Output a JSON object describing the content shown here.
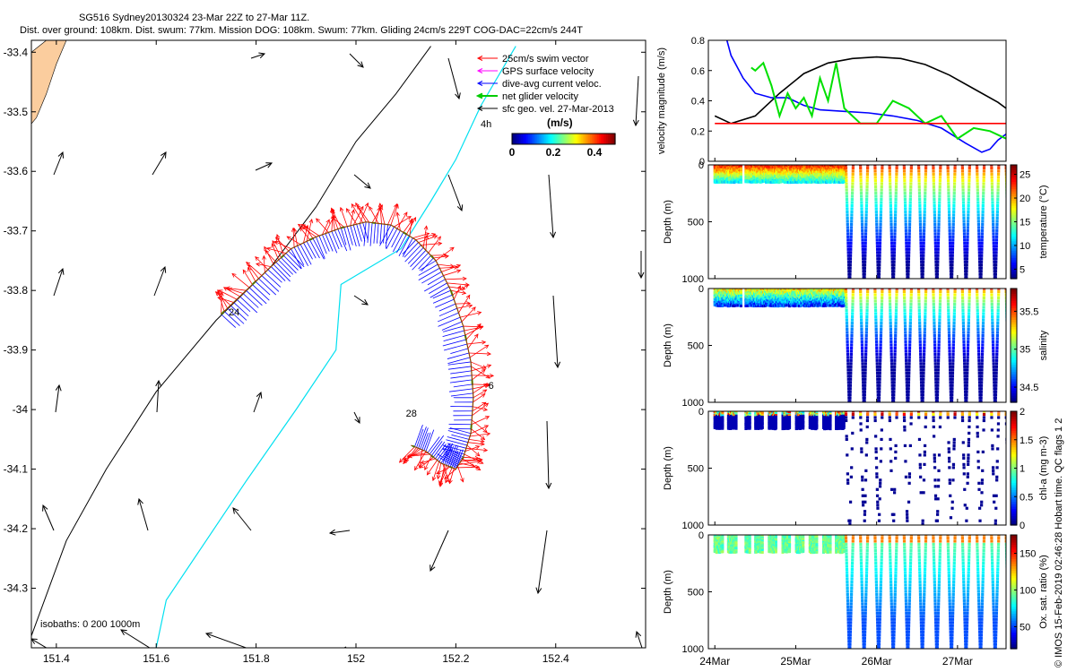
{
  "title": {
    "line1": "SG516 Sydney20130324 23-Mar 22Z to 27-Mar 11Z.",
    "line2": "Dist. over ground: 108km. Dist. swum: 77km. Mission DOG: 108km. Swum: 77km. Gliding 24cm/s 229T COG-DAC=22cm/s 244T"
  },
  "copyright": "© IMOS 15-Feb-2019 02:46:28 Hobart time. QC flags 1  2",
  "colors": {
    "land": "#fbcd9e",
    "swim": "#ff0000",
    "gps": "#ff00ff",
    "dac": "#0000ff",
    "net": "#00cc00",
    "sfc": "#000000",
    "isobath": "#00e0f0",
    "isobath_shelf": "#000000"
  },
  "chart_data": [
    {
      "type": "scatter",
      "name": "track-map",
      "xlim": [
        151.35,
        152.58
      ],
      "ylim": [
        -34.4,
        -33.38
      ],
      "xticks": [
        151.4,
        151.6,
        151.8,
        152,
        152.2,
        152.4
      ],
      "xtick_labels": [
        "151.4",
        "151.6",
        "151.8",
        "152",
        "152.2",
        "152.4"
      ],
      "yticks": [
        -33.4,
        -33.5,
        -33.6,
        -33.7,
        -33.8,
        -33.9,
        -34,
        -34.1,
        -34.2,
        -34.3
      ],
      "ytick_labels": [
        "-33.4",
        "-33.5",
        "-33.6",
        "-33.7",
        "-33.8",
        "-33.9",
        "-34",
        "-34.1",
        "-34.2",
        "-34.3"
      ],
      "legend": {
        "position": "top-right",
        "items": [
          "25cm/s swim vector",
          "GPS surface velocity",
          "dive-avg current veloc.",
          "net glider velocity",
          "sfc geo. vel. 27-Mar-2013"
        ],
        "time_label": "4h"
      },
      "colorbar": {
        "label": "(m/s)",
        "ticks": [
          0,
          0.2,
          0.4
        ],
        "tick_labels": [
          "0",
          "0.2",
          "0.4"
        ],
        "range": [
          0,
          0.5
        ]
      },
      "isobaths_label": "isobaths: 0   200  1000m",
      "day_labels": [
        {
          "text": "24",
          "lon": 151.745,
          "lat": -33.842
        },
        {
          "text": "28",
          "lon": 152.1,
          "lat": -34.012
        },
        {
          "text": "6",
          "lon": 152.265,
          "lat": -33.965
        }
      ],
      "track": [
        [
          151.73,
          -33.84
        ],
        [
          151.78,
          -33.8
        ],
        [
          151.83,
          -33.76
        ],
        [
          151.87,
          -33.73
        ],
        [
          151.92,
          -33.71
        ],
        [
          151.97,
          -33.695
        ],
        [
          152.02,
          -33.685
        ],
        [
          152.07,
          -33.69
        ],
        [
          152.12,
          -33.715
        ],
        [
          152.16,
          -33.75
        ],
        [
          152.19,
          -33.8
        ],
        [
          152.215,
          -33.86
        ],
        [
          152.23,
          -33.92
        ],
        [
          152.235,
          -33.98
        ],
        [
          152.23,
          -34.04
        ],
        [
          152.215,
          -34.08
        ],
        [
          152.2,
          -34.1
        ],
        [
          152.17,
          -34.09
        ],
        [
          152.14,
          -34.07
        ],
        [
          152.11,
          -34.06
        ]
      ],
      "coast": [
        [
          151.35,
          -33.4
        ],
        [
          151.38,
          -33.38
        ],
        [
          151.42,
          -33.38
        ],
        [
          151.4,
          -33.42
        ],
        [
          151.38,
          -33.47
        ],
        [
          151.36,
          -33.51
        ],
        [
          151.35,
          -33.52
        ]
      ],
      "isobath_200": [
        [
          151.35,
          -34.38
        ],
        [
          151.42,
          -34.22
        ],
        [
          151.5,
          -34.1
        ],
        [
          151.6,
          -33.97
        ],
        [
          151.72,
          -33.85
        ],
        [
          151.83,
          -33.76
        ],
        [
          151.92,
          -33.66
        ],
        [
          152.0,
          -33.55
        ],
        [
          152.08,
          -33.47
        ],
        [
          152.15,
          -33.39
        ]
      ],
      "isobath_1000": [
        [
          151.6,
          -34.4
        ],
        [
          151.62,
          -34.32
        ],
        [
          151.7,
          -34.22
        ],
        [
          151.78,
          -34.12
        ],
        [
          151.88,
          -34.0
        ],
        [
          151.96,
          -33.9
        ],
        [
          151.97,
          -33.79
        ],
        [
          152.09,
          -33.73
        ],
        [
          152.15,
          -33.65
        ],
        [
          152.2,
          -33.58
        ],
        [
          152.25,
          -33.49
        ],
        [
          152.32,
          -33.39
        ]
      ]
    },
    {
      "type": "line",
      "name": "velocity-magnitude",
      "ylabel": "velocity magnitude (m/s)",
      "ylim": [
        0,
        0.8
      ],
      "yticks": [
        0,
        0.2,
        0.4,
        0.6,
        0.8
      ],
      "ytick_labels": [
        "0",
        "0.2",
        "0.4",
        "0.6",
        "0.8"
      ],
      "xlim": [
        23.92,
        27.6
      ],
      "series": [
        {
          "color": "#000000",
          "x": [
            24.0,
            24.2,
            24.5,
            24.8,
            25.1,
            25.4,
            25.7,
            26.0,
            26.3,
            26.6,
            26.9,
            27.2,
            27.5,
            27.6
          ],
          "values": [
            0.3,
            0.25,
            0.3,
            0.45,
            0.58,
            0.65,
            0.68,
            0.69,
            0.68,
            0.64,
            0.57,
            0.48,
            0.39,
            0.35
          ]
        },
        {
          "color": "#0000ff",
          "x": [
            24.15,
            24.2,
            24.35,
            24.5,
            24.7,
            24.9,
            25.1,
            25.3,
            25.6,
            25.9,
            26.2,
            26.5,
            26.8,
            27.1,
            27.3,
            27.4,
            27.5,
            27.6
          ],
          "values": [
            0.8,
            0.7,
            0.55,
            0.45,
            0.42,
            0.42,
            0.37,
            0.34,
            0.33,
            0.32,
            0.3,
            0.27,
            0.22,
            0.12,
            0.06,
            0.08,
            0.14,
            0.18
          ]
        },
        {
          "color": "#00e000",
          "x": [
            24.45,
            24.5,
            24.6,
            24.7,
            24.8,
            24.9,
            25.0,
            25.1,
            25.2,
            25.3,
            25.4,
            25.5,
            25.6,
            25.8,
            26.0,
            26.2,
            26.4,
            26.6,
            26.8,
            27.0,
            27.2,
            27.4,
            27.6
          ],
          "values": [
            0.62,
            0.6,
            0.65,
            0.5,
            0.3,
            0.45,
            0.35,
            0.42,
            0.3,
            0.55,
            0.4,
            0.65,
            0.35,
            0.25,
            0.25,
            0.4,
            0.35,
            0.25,
            0.3,
            0.15,
            0.22,
            0.2,
            0.15
          ]
        },
        {
          "color": "#ff0000",
          "x": [
            24.0,
            27.6
          ],
          "values": [
            0.25,
            0.25
          ]
        }
      ]
    },
    {
      "type": "heatmap",
      "name": "temperature-section",
      "ylabel": "Depth (m)",
      "clabel": "temperature (°C)",
      "ylim": [
        0,
        1000
      ],
      "yticks": [
        0,
        500,
        1000
      ],
      "ytick_labels": [
        "0",
        "500",
        "1000"
      ],
      "cticks": [
        5,
        10,
        15,
        20,
        25
      ],
      "ctick_labels": [
        "5",
        "10",
        "15",
        "20",
        "25"
      ],
      "crange": [
        3,
        27
      ]
    },
    {
      "type": "heatmap",
      "name": "salinity-section",
      "ylabel": "Depth (m)",
      "clabel": "salinity",
      "ylim": [
        0,
        1000
      ],
      "yticks": [
        0,
        500,
        1000
      ],
      "ytick_labels": [
        "0",
        "500",
        "1000"
      ],
      "cticks": [
        34.5,
        35,
        35.5
      ],
      "ctick_labels": [
        "34.5",
        "35",
        "35.5"
      ],
      "crange": [
        34.3,
        35.8
      ]
    },
    {
      "type": "heatmap",
      "name": "chla-section",
      "ylabel": "Depth (m)",
      "clabel": "chl-a (mg m-3)",
      "ylim": [
        0,
        1000
      ],
      "yticks": [
        0,
        500,
        1000
      ],
      "ytick_labels": [
        "0",
        "500",
        "1000"
      ],
      "cticks": [
        0,
        0.5,
        1,
        1.5,
        2
      ],
      "ctick_labels": [
        "0",
        "0.5",
        "1",
        "1.5",
        "2"
      ],
      "crange": [
        0,
        2
      ]
    },
    {
      "type": "heatmap",
      "name": "oxygen-section",
      "ylabel": "Depth (m)",
      "clabel": "Ox. sat. ratio (%)",
      "ylim": [
        0,
        1000
      ],
      "yticks": [
        0,
        500,
        1000
      ],
      "ytick_labels": [
        "0",
        "500",
        "1000"
      ],
      "cticks": [
        50,
        100,
        150
      ],
      "ctick_labels": [
        "50",
        "100",
        "150"
      ],
      "crange": [
        20,
        175
      ]
    }
  ],
  "time_axis": {
    "ticks": [
      24,
      25,
      26,
      27
    ],
    "tick_labels": [
      "24Mar",
      "25Mar",
      "26Mar",
      "27Mar"
    ],
    "xlim": [
      23.92,
      27.6
    ]
  }
}
